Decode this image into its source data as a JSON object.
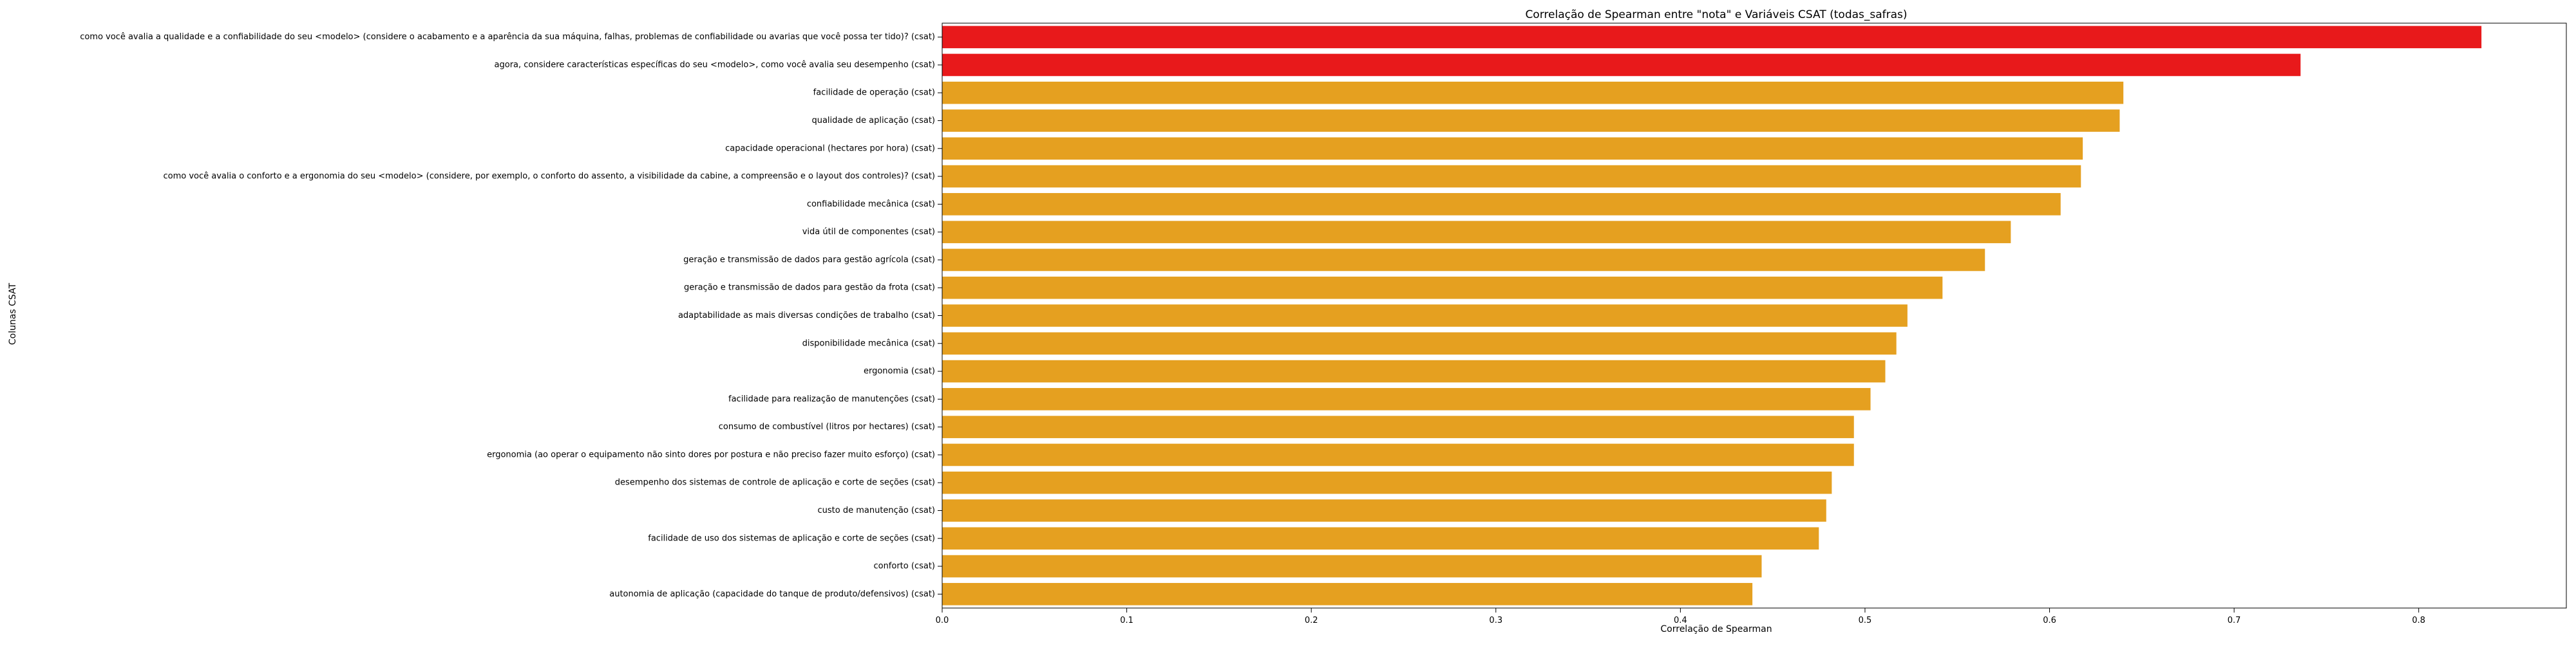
{
  "chart_data": {
    "type": "bar",
    "orientation": "horizontal",
    "title": "Correlação de Spearman entre \"nota\" e Variáveis CSAT (todas_safras)",
    "xlabel": "Correlação de Spearman",
    "ylabel": "Colunas CSAT",
    "xlim": [
      0,
      0.88
    ],
    "xticks": [
      "0.0",
      "0.1",
      "0.2",
      "0.3",
      "0.4",
      "0.5",
      "0.6",
      "0.7",
      "0.8"
    ],
    "grid": false,
    "legend": "none",
    "colors": {
      "highlight": "#e8191b",
      "default": "#e5a020"
    },
    "categories": [
      "como você avalia a qualidade e a confiabilidade do seu <modelo> (considere o acabamento e a aparência da sua máquina, falhas, problemas de confiabilidade ou avarias que você possa ter tido)? (csat)",
      "agora, considere características específicas do seu <modelo>, como você avalia seu desempenho (csat)",
      "facilidade de operação (csat)",
      "qualidade de aplicação (csat)",
      "capacidade operacional (hectares por hora) (csat)",
      "como você avalia o conforto e a ergonomia do seu <modelo>  (considere, por exemplo, o conforto do assento, a visibilidade da cabine, a compreensão e o layout dos controles)? (csat)",
      "confiabilidade mecânica (csat)",
      "vida útil de componentes (csat)",
      "geração e transmissão de dados para gestão agrícola (csat)",
      "geração e transmissão de dados para gestão da frota (csat)",
      "adaptabilidade as mais diversas condições de trabalho (csat)",
      "disponibilidade mecânica (csat)",
      "ergonomia (csat)",
      "facilidade para realização de manutenções (csat)",
      "consumo de combustível (litros por hectares) (csat)",
      "ergonomia (ao operar o equipamento não sinto dores por postura e não preciso fazer muito esforço) (csat)",
      "desempenho dos sistemas de controle de aplicação e corte de seções (csat)",
      "custo de manutenção (csat)",
      "facilidade de uso dos sistemas de aplicação e corte de seções (csat)",
      "conforto (csat)",
      "autonomia de aplicação (capacidade do tanque de produto/defensivos) (csat)"
    ],
    "values": [
      0.834,
      0.736,
      0.64,
      0.638,
      0.618,
      0.617,
      0.606,
      0.579,
      0.565,
      0.542,
      0.523,
      0.517,
      0.511,
      0.503,
      0.494,
      0.494,
      0.482,
      0.479,
      0.475,
      0.444,
      0.439
    ],
    "highlighted": [
      true,
      true,
      false,
      false,
      false,
      false,
      false,
      false,
      false,
      false,
      false,
      false,
      false,
      false,
      false,
      false,
      false,
      false,
      false,
      false,
      false
    ]
  }
}
